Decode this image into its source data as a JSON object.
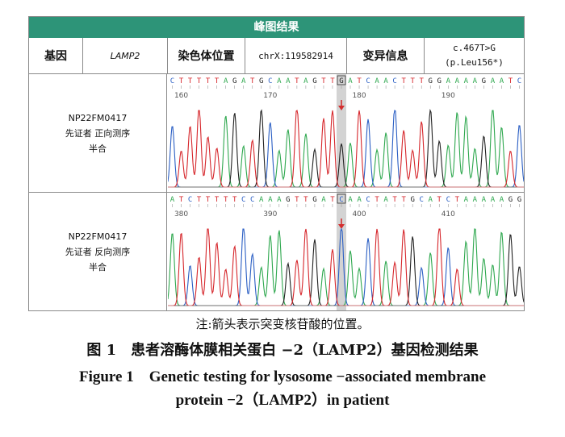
{
  "figure": {
    "banner_title": "峰图结果",
    "header": {
      "gene_label": "基因",
      "gene_value": "LAMP2",
      "position_label": "染色体位置",
      "position_value": "chrX:119582914",
      "variant_label": "变异信息",
      "variant_value_line1": "c.467T>G",
      "variant_value_line2": "(p.Leu156*)"
    },
    "rows": [
      {
        "sample_id": "NP22FM0417",
        "description": "先证者 正向测序",
        "zygosity": "半合",
        "sequence": "CTTTTTAGATGCAATAGTTGATCAACTTTGGAAAAGAATC",
        "highlight_index": 19,
        "highlight_base": "G",
        "tick_labels": [
          "160",
          "170",
          "180",
          "190"
        ]
      },
      {
        "sample_id": "NP22FM0417",
        "description": "先证者 反向测序",
        "zygosity": "半合",
        "sequence": "ATCTTTTTCCAAAGTTGATCAACTATTGCATCTAAAAAGG",
        "highlight_index": 19,
        "highlight_base": "C",
        "tick_labels": [
          "380",
          "390",
          "400",
          "410"
        ]
      }
    ],
    "base_colors": {
      "A": "#2fa84f",
      "C": "#2b5fc4",
      "G": "#222222",
      "T": "#d6262b"
    },
    "highlight_color": "#d3d3d3",
    "arrow_color": "#d32f2f"
  },
  "note": "注:箭头表示突变核苷酸的位置。",
  "caption": {
    "cn": "图 1　患者溶酶体膜相关蛋白 −2（LAMP2）基因检测结果",
    "en_line1": "Figure 1　Genetic testing for lysosome −associated membrane",
    "en_line2": "protein −2（LAMP2）in patient"
  }
}
